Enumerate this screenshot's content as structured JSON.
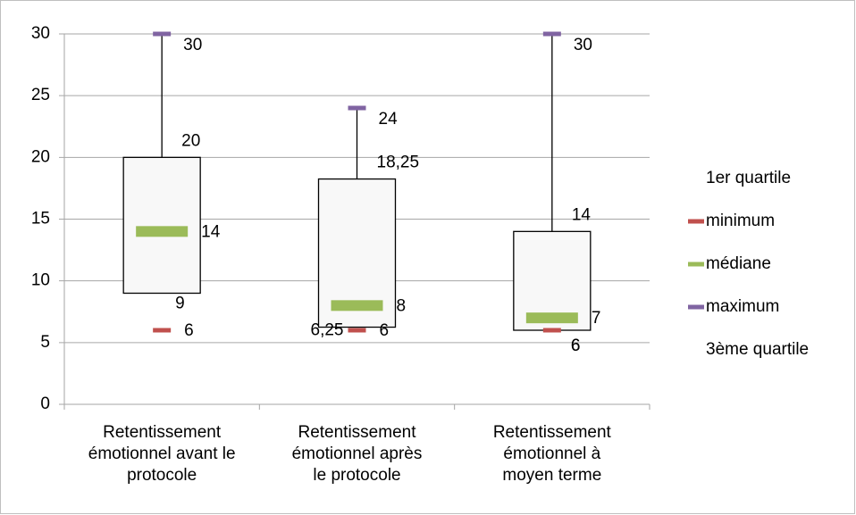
{
  "chart_data": {
    "type": "box",
    "categories": [
      "Retentissement émotionnel avant le protocole",
      "Retentissement émotionnel après le protocole",
      "Retentissement émotionnel à moyen terme"
    ],
    "series": [
      {
        "name": "1er quartile",
        "values": [
          9,
          6.25,
          6
        ],
        "value_labels": [
          "9",
          "6,25",
          "6"
        ]
      },
      {
        "name": "minimum",
        "color": "#c0504d",
        "values": [
          6,
          6,
          6
        ]
      },
      {
        "name": "médiane",
        "color": "#9bbb59",
        "values": [
          14,
          8,
          7
        ]
      },
      {
        "name": "maximum",
        "color": "#8064a2",
        "values": [
          30,
          24,
          30
        ]
      },
      {
        "name": "3ème quartile",
        "values": [
          20,
          18.25,
          14
        ],
        "value_labels": [
          "20",
          "18,25",
          "14"
        ]
      }
    ],
    "ylim": [
      0,
      30
    ],
    "yticks": [
      0,
      5,
      10,
      15,
      20,
      25,
      30
    ],
    "grid": true,
    "legend": "right"
  }
}
